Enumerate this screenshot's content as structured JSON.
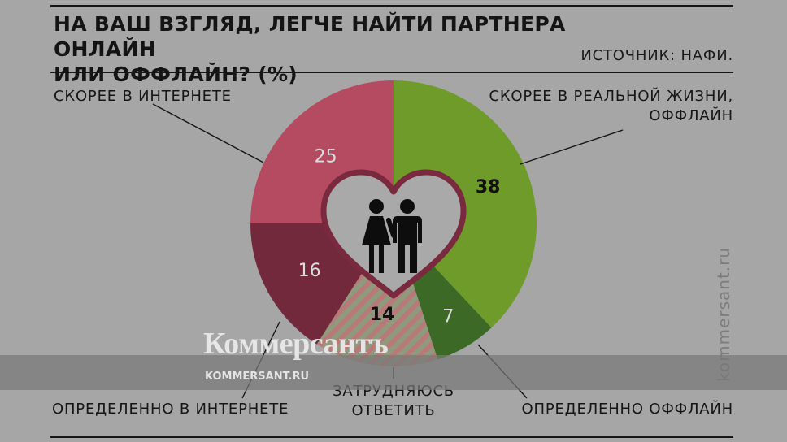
{
  "header": {
    "title_line1": "НА ВАШ ВЗГЛЯД, ЛЕГЧЕ НАЙТИ ПАРТНЕРА ОНЛАЙН",
    "title_line2": "ИЛИ ОФФЛАЙН? (%)",
    "source": "ИСТОЧНИК: НАФИ."
  },
  "labels": {
    "offline_likely_line1": "СКОРЕЕ В РЕАЛЬНОЙ ЖИЗНИ,",
    "offline_likely_line2": "ОФФЛАЙН",
    "offline_definitely": "ОПРЕДЕЛЕННО ОФФЛАЙН",
    "hard_to_say_line1": "ЗАТРУДНЯЮСЬ",
    "hard_to_say_line2": "ОТВЕТИТЬ",
    "online_definitely": "ОПРЕДЕЛЕННО В ИНТЕРНЕТЕ",
    "online_likely": "СКОРЕЕ В ИНТЕРНЕТЕ"
  },
  "watermark": {
    "logo": "Коммерсантъ",
    "url": "KOMMERSANT.RU",
    "vertical": "kommersant.ru"
  },
  "chart_data": {
    "type": "pie",
    "title": "НА ВАШ ВЗГЛЯД, ЛЕГЧЕ НАЙТИ ПАРТНЕРА ОНЛАЙН ИЛИ ОФФЛАЙН? (%)",
    "slices": [
      {
        "label": "СКОРЕЕ В РЕАЛЬНОЙ ЖИЗНИ, ОФФЛАЙН",
        "value": 38,
        "color": "#6f9b2a",
        "value_color": "#111111"
      },
      {
        "label": "ОПРЕДЕЛЕННО ОФФЛАЙН",
        "value": 7,
        "color": "#3c6a26",
        "value_color": "#dddddd"
      },
      {
        "label": "ЗАТРУДНЯЮСЬ ОТВЕТИТЬ",
        "value": 14,
        "color": "#9a9a86",
        "value_color": "#111111",
        "hatched": true
      },
      {
        "label": "ОПРЕДЕЛЕННО В ИНТЕРНЕТЕ",
        "value": 16,
        "color": "#72293c",
        "value_color": "#dddddd"
      },
      {
        "label": "СКОРЕЕ В ИНТЕРНЕТЕ",
        "value": 25,
        "color": "#b54b60",
        "value_color": "#dddddd"
      }
    ],
    "start_angle_deg": 0,
    "direction": "clockwise",
    "center_icon": "heart-couple-icon",
    "heart_color": "#a9a9a9",
    "heart_stroke": "#7a2a3e"
  }
}
